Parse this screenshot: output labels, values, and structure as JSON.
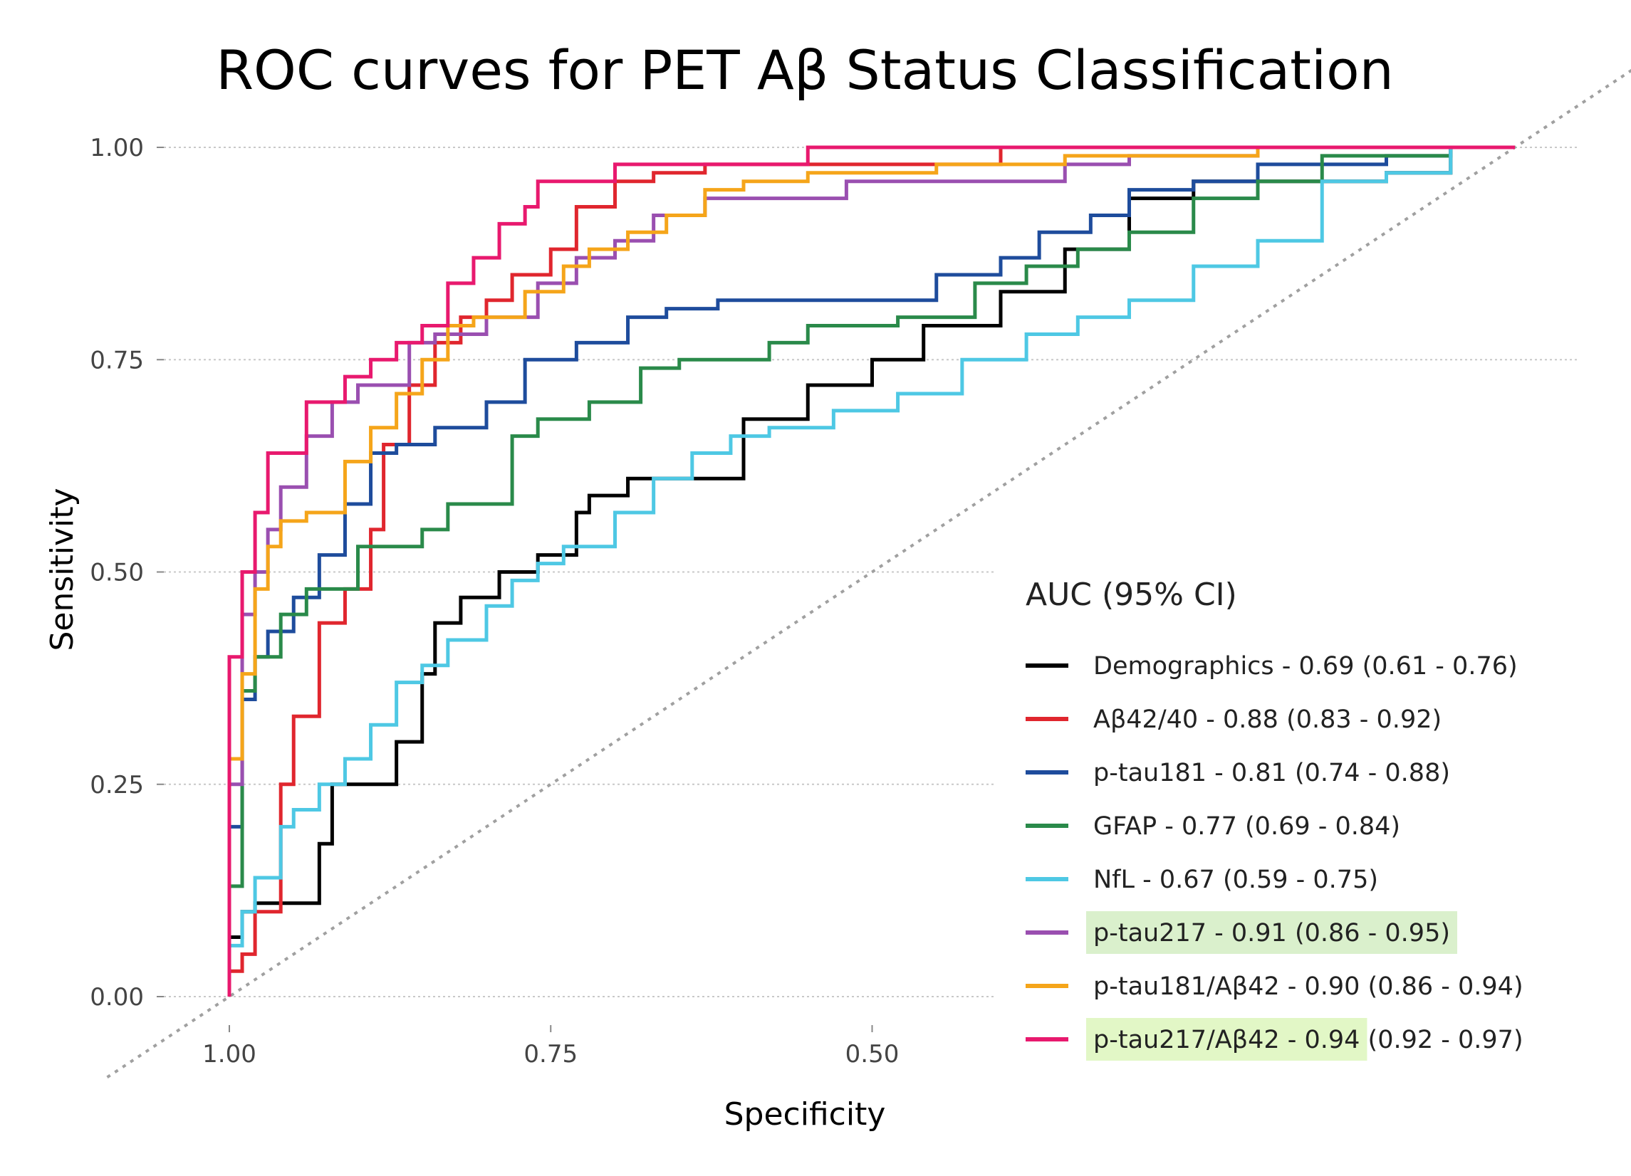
{
  "chart_data": {
    "type": "line",
    "title": "ROC curves for PET Aβ Status Classification",
    "xlabel": "Specificity",
    "ylabel": "Sensitivity",
    "xlim": [
      1.0,
      0.0
    ],
    "ylim": [
      0.0,
      1.0
    ],
    "x_reversed": true,
    "x_ticks": [
      "1.00",
      "0.75",
      "0.50"
    ],
    "y_ticks": [
      "0.00",
      "0.25",
      "0.50",
      "0.75",
      "1.00"
    ],
    "grid": "horizontal dotted",
    "reference_line": "diagonal",
    "legend_title": "AUC (95% CI)",
    "legend_position": "bottom-right",
    "series": [
      {
        "name": "Demographics - 0.69 (0.61 - 0.76)",
        "color": "#000000",
        "highlight": "",
        "points": [
          [
            1.0,
            0.0
          ],
          [
            1.0,
            0.05
          ],
          [
            0.99,
            0.07
          ],
          [
            0.98,
            0.1
          ],
          [
            0.96,
            0.11
          ],
          [
            0.93,
            0.11
          ],
          [
            0.92,
            0.18
          ],
          [
            0.9,
            0.25
          ],
          [
            0.87,
            0.25
          ],
          [
            0.85,
            0.3
          ],
          [
            0.84,
            0.38
          ],
          [
            0.82,
            0.44
          ],
          [
            0.79,
            0.47
          ],
          [
            0.76,
            0.5
          ],
          [
            0.73,
            0.52
          ],
          [
            0.72,
            0.57
          ],
          [
            0.69,
            0.59
          ],
          [
            0.65,
            0.61
          ],
          [
            0.6,
            0.61
          ],
          [
            0.55,
            0.68
          ],
          [
            0.5,
            0.72
          ],
          [
            0.46,
            0.75
          ],
          [
            0.4,
            0.79
          ],
          [
            0.35,
            0.83
          ],
          [
            0.3,
            0.88
          ],
          [
            0.25,
            0.94
          ],
          [
            0.2,
            0.96
          ],
          [
            0.1,
            0.96
          ],
          [
            0.05,
            0.97
          ],
          [
            0.0,
            1.0
          ]
        ]
      },
      {
        "name": "Aβ42/40 - 0.88 (0.83 - 0.92)",
        "color": "#e0262e",
        "highlight": "",
        "points": [
          [
            1.0,
            0.0
          ],
          [
            0.99,
            0.03
          ],
          [
            0.98,
            0.05
          ],
          [
            0.96,
            0.1
          ],
          [
            0.95,
            0.25
          ],
          [
            0.93,
            0.33
          ],
          [
            0.91,
            0.44
          ],
          [
            0.89,
            0.48
          ],
          [
            0.88,
            0.55
          ],
          [
            0.86,
            0.65
          ],
          [
            0.84,
            0.72
          ],
          [
            0.82,
            0.77
          ],
          [
            0.8,
            0.8
          ],
          [
            0.78,
            0.82
          ],
          [
            0.75,
            0.85
          ],
          [
            0.73,
            0.88
          ],
          [
            0.7,
            0.93
          ],
          [
            0.67,
            0.96
          ],
          [
            0.63,
            0.97
          ],
          [
            0.55,
            0.98
          ],
          [
            0.4,
            0.98
          ],
          [
            0.0,
            1.0
          ]
        ]
      },
      {
        "name": "p-tau181 - 0.81 (0.74 - 0.88)",
        "color": "#1e4c9c",
        "highlight": "",
        "points": [
          [
            1.0,
            0.0
          ],
          [
            0.99,
            0.2
          ],
          [
            0.98,
            0.35
          ],
          [
            0.97,
            0.4
          ],
          [
            0.95,
            0.43
          ],
          [
            0.93,
            0.47
          ],
          [
            0.91,
            0.52
          ],
          [
            0.89,
            0.58
          ],
          [
            0.87,
            0.64
          ],
          [
            0.84,
            0.65
          ],
          [
            0.8,
            0.67
          ],
          [
            0.77,
            0.7
          ],
          [
            0.73,
            0.75
          ],
          [
            0.69,
            0.77
          ],
          [
            0.66,
            0.8
          ],
          [
            0.62,
            0.81
          ],
          [
            0.55,
            0.82
          ],
          [
            0.45,
            0.82
          ],
          [
            0.4,
            0.85
          ],
          [
            0.37,
            0.87
          ],
          [
            0.33,
            0.9
          ],
          [
            0.3,
            0.92
          ],
          [
            0.25,
            0.95
          ],
          [
            0.2,
            0.96
          ],
          [
            0.1,
            0.98
          ],
          [
            0.05,
            0.99
          ],
          [
            0.0,
            1.0
          ]
        ]
      },
      {
        "name": "GFAP - 0.77 (0.69 - 0.84)",
        "color": "#2a8a4a",
        "highlight": "",
        "points": [
          [
            1.0,
            0.0
          ],
          [
            0.99,
            0.13
          ],
          [
            0.98,
            0.36
          ],
          [
            0.96,
            0.4
          ],
          [
            0.94,
            0.45
          ],
          [
            0.93,
            0.48
          ],
          [
            0.9,
            0.48
          ],
          [
            0.85,
            0.53
          ],
          [
            0.83,
            0.55
          ],
          [
            0.78,
            0.58
          ],
          [
            0.76,
            0.66
          ],
          [
            0.72,
            0.68
          ],
          [
            0.68,
            0.7
          ],
          [
            0.65,
            0.74
          ],
          [
            0.62,
            0.75
          ],
          [
            0.58,
            0.75
          ],
          [
            0.55,
            0.77
          ],
          [
            0.48,
            0.79
          ],
          [
            0.42,
            0.8
          ],
          [
            0.38,
            0.84
          ],
          [
            0.34,
            0.86
          ],
          [
            0.3,
            0.88
          ],
          [
            0.25,
            0.9
          ],
          [
            0.2,
            0.94
          ],
          [
            0.15,
            0.96
          ],
          [
            0.05,
            0.99
          ],
          [
            0.0,
            1.0
          ]
        ]
      },
      {
        "name": "NfL - 0.67 (0.59 - 0.75)",
        "color": "#4ec8e4",
        "highlight": "",
        "points": [
          [
            1.0,
            0.0
          ],
          [
            0.99,
            0.06
          ],
          [
            0.98,
            0.1
          ],
          [
            0.96,
            0.14
          ],
          [
            0.95,
            0.2
          ],
          [
            0.93,
            0.22
          ],
          [
            0.91,
            0.25
          ],
          [
            0.89,
            0.28
          ],
          [
            0.87,
            0.32
          ],
          [
            0.85,
            0.37
          ],
          [
            0.83,
            0.39
          ],
          [
            0.8,
            0.42
          ],
          [
            0.78,
            0.46
          ],
          [
            0.76,
            0.49
          ],
          [
            0.74,
            0.51
          ],
          [
            0.7,
            0.53
          ],
          [
            0.67,
            0.57
          ],
          [
            0.64,
            0.61
          ],
          [
            0.61,
            0.64
          ],
          [
            0.58,
            0.66
          ],
          [
            0.53,
            0.67
          ],
          [
            0.48,
            0.69
          ],
          [
            0.43,
            0.71
          ],
          [
            0.38,
            0.75
          ],
          [
            0.34,
            0.78
          ],
          [
            0.3,
            0.8
          ],
          [
            0.25,
            0.82
          ],
          [
            0.2,
            0.86
          ],
          [
            0.15,
            0.89
          ],
          [
            0.1,
            0.96
          ],
          [
            0.05,
            0.97
          ],
          [
            0.0,
            1.0
          ]
        ]
      },
      {
        "name": "p-tau217 - 0.91 (0.86 - 0.95)",
        "color": "#9a4fb0",
        "highlight": "#daf0cc",
        "points": [
          [
            1.0,
            0.0
          ],
          [
            0.99,
            0.25
          ],
          [
            0.98,
            0.45
          ],
          [
            0.97,
            0.5
          ],
          [
            0.96,
            0.55
          ],
          [
            0.94,
            0.6
          ],
          [
            0.92,
            0.66
          ],
          [
            0.9,
            0.7
          ],
          [
            0.86,
            0.72
          ],
          [
            0.84,
            0.77
          ],
          [
            0.8,
            0.78
          ],
          [
            0.76,
            0.8
          ],
          [
            0.73,
            0.84
          ],
          [
            0.7,
            0.87
          ],
          [
            0.67,
            0.89
          ],
          [
            0.63,
            0.92
          ],
          [
            0.59,
            0.94
          ],
          [
            0.52,
            0.94
          ],
          [
            0.45,
            0.96
          ],
          [
            0.35,
            0.96
          ],
          [
            0.3,
            0.98
          ],
          [
            0.2,
            0.99
          ],
          [
            0.0,
            1.0
          ]
        ]
      },
      {
        "name": "p-tau181/Aβ42 - 0.90 (0.86 - 0.94)",
        "color": "#f5a51a",
        "highlight": "",
        "points": [
          [
            1.0,
            0.0
          ],
          [
            0.99,
            0.28
          ],
          [
            0.98,
            0.38
          ],
          [
            0.97,
            0.48
          ],
          [
            0.96,
            0.53
          ],
          [
            0.94,
            0.56
          ],
          [
            0.91,
            0.57
          ],
          [
            0.89,
            0.63
          ],
          [
            0.87,
            0.67
          ],
          [
            0.85,
            0.71
          ],
          [
            0.83,
            0.75
          ],
          [
            0.81,
            0.79
          ],
          [
            0.77,
            0.8
          ],
          [
            0.74,
            0.83
          ],
          [
            0.72,
            0.86
          ],
          [
            0.69,
            0.88
          ],
          [
            0.66,
            0.9
          ],
          [
            0.63,
            0.92
          ],
          [
            0.6,
            0.95
          ],
          [
            0.55,
            0.96
          ],
          [
            0.45,
            0.97
          ],
          [
            0.35,
            0.98
          ],
          [
            0.2,
            0.99
          ],
          [
            0.0,
            1.0
          ]
        ]
      },
      {
        "name": "p-tau217/Aβ42 - 0.94 (0.92 - 0.97)",
        "color": "#e8196e",
        "highlight": "#e2f7c6",
        "highlight_end": "p-tau217/Aβ42 - 0.94",
        "points": [
          [
            1.0,
            0.0
          ],
          [
            1.0,
            0.2
          ],
          [
            0.99,
            0.4
          ],
          [
            0.98,
            0.5
          ],
          [
            0.97,
            0.57
          ],
          [
            0.96,
            0.64
          ],
          [
            0.94,
            0.64
          ],
          [
            0.93,
            0.7
          ],
          [
            0.91,
            0.7
          ],
          [
            0.89,
            0.73
          ],
          [
            0.87,
            0.75
          ],
          [
            0.85,
            0.77
          ],
          [
            0.83,
            0.79
          ],
          [
            0.81,
            0.84
          ],
          [
            0.79,
            0.87
          ],
          [
            0.77,
            0.91
          ],
          [
            0.76,
            0.93
          ],
          [
            0.74,
            0.96
          ],
          [
            0.7,
            0.96
          ],
          [
            0.67,
            0.98
          ],
          [
            0.55,
            0.98
          ],
          [
            0.45,
            1.0
          ],
          [
            0.0,
            1.0
          ]
        ]
      }
    ]
  }
}
